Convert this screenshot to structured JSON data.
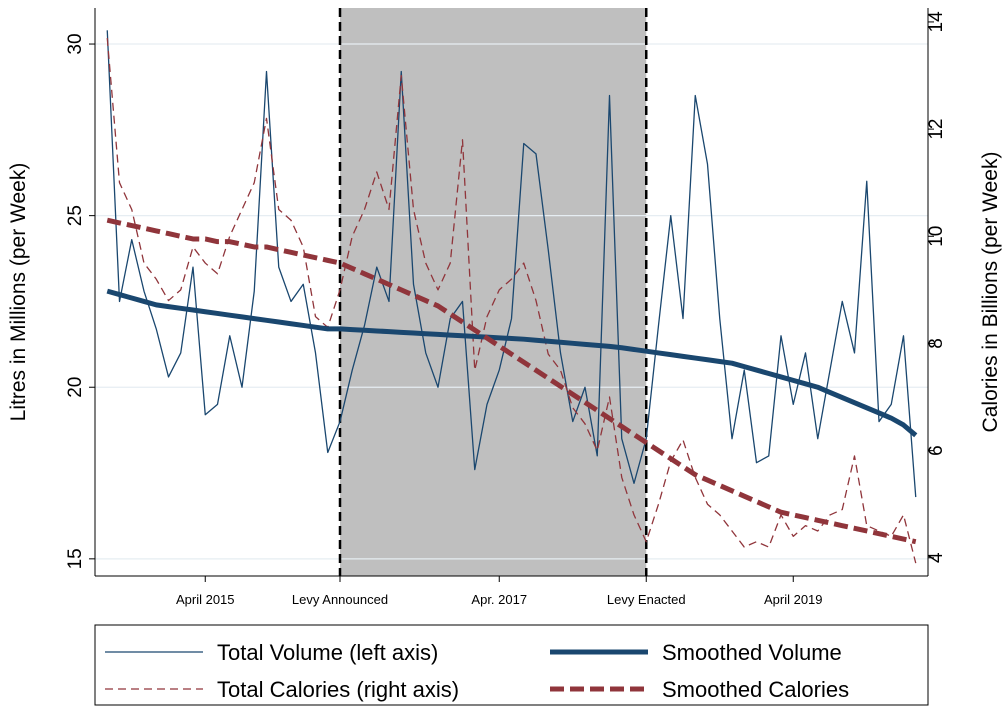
{
  "chart_data": {
    "type": "line",
    "y_label": "Litres in Millions (per Week)",
    "y2_label": "Calories in Billions (per Week)",
    "x": [
      "2014-08",
      "2014-09",
      "2014-10",
      "2014-11",
      "2014-12",
      "2015-01",
      "2015-02",
      "2015-03",
      "2015-04",
      "2015-05",
      "2015-06",
      "2015-07",
      "2015-08",
      "2015-09",
      "2015-10",
      "2015-11",
      "2015-12",
      "2016-01",
      "2016-02",
      "2016-03",
      "2016-04",
      "2016-05",
      "2016-06",
      "2016-07",
      "2016-08",
      "2016-09",
      "2016-10",
      "2016-11",
      "2016-12",
      "2017-01",
      "2017-02",
      "2017-03",
      "2017-04",
      "2017-05",
      "2017-06",
      "2017-07",
      "2017-08",
      "2017-09",
      "2017-10",
      "2017-11",
      "2017-12",
      "2018-01",
      "2018-02",
      "2018-03",
      "2018-04",
      "2018-05",
      "2018-06",
      "2018-07",
      "2018-08",
      "2018-09",
      "2018-10",
      "2018-11",
      "2018-12",
      "2019-01",
      "2019-02",
      "2019-03",
      "2019-04",
      "2019-05",
      "2019-06",
      "2019-07",
      "2019-08",
      "2019-09",
      "2019-10",
      "2019-11",
      "2019-12",
      "2020-01",
      "2020-02"
    ],
    "xlim": [
      "2014-07",
      "2020-03"
    ],
    "xticks": [
      {
        "value": "2015-04",
        "label": "April 2015"
      },
      {
        "value": "2016-03",
        "label": "Levy Announced"
      },
      {
        "value": "2017-04",
        "label": "Apr. 2017"
      },
      {
        "value": "2018-04",
        "label": "Levy Enacted"
      },
      {
        "value": "2019-04",
        "label": "April 2019"
      }
    ],
    "shaded_region": [
      "2016-03",
      "2018-04"
    ],
    "ylim": [
      14.5,
      31.05
    ],
    "yticks": [
      15,
      20,
      25,
      30
    ],
    "y2lim": [
      3.66,
      14.26
    ],
    "y2ticks": [
      4,
      6,
      8,
      10,
      12,
      14
    ],
    "grid": true,
    "series": [
      {
        "name": "Total Volume (left axis)",
        "color": "#1a476f",
        "style": "solid",
        "width": 1.3,
        "values": [
          30.4,
          22.5,
          24.3,
          22.8,
          21.7,
          20.3,
          21.0,
          23.5,
          19.2,
          19.5,
          21.5,
          20.0,
          22.8,
          29.2,
          23.5,
          22.5,
          23.0,
          21.0,
          18.1,
          19.0,
          20.5,
          21.8,
          23.5,
          22.5,
          29.2,
          23.0,
          21.0,
          20.0,
          22.0,
          22.5,
          17.6,
          19.5,
          20.5,
          22.0,
          27.1,
          26.8,
          24.0,
          21.0,
          19.0,
          20.0,
          18.0,
          28.5,
          18.5,
          17.2,
          18.5,
          21.8,
          25.0,
          22.0,
          28.5,
          26.5,
          22.0,
          18.5,
          20.5,
          17.8,
          18.0,
          21.5,
          19.5,
          21.0,
          18.5,
          20.5,
          22.5,
          21.0,
          26.0,
          19.0,
          19.5,
          21.5,
          16.8
        ]
      },
      {
        "name": "Total Calories (right axis)",
        "axis": "y2",
        "color": "#90353b",
        "style": "dashed",
        "width": 1.3,
        "values": [
          13.7,
          11.0,
          10.5,
          9.5,
          9.2,
          8.8,
          9.0,
          9.8,
          9.5,
          9.3,
          10.0,
          10.5,
          11.0,
          12.2,
          10.5,
          10.3,
          9.8,
          8.5,
          8.3,
          9.0,
          10.0,
          10.5,
          11.2,
          10.5,
          13.0,
          10.5,
          9.5,
          9.0,
          9.5,
          11.8,
          7.5,
          8.5,
          9.0,
          9.2,
          9.5,
          8.8,
          7.8,
          7.5,
          6.8,
          6.5,
          6.0,
          7.0,
          5.5,
          4.8,
          4.3,
          5.0,
          5.8,
          6.2,
          5.5,
          5.0,
          4.8,
          4.5,
          4.2,
          4.3,
          4.2,
          4.8,
          4.4,
          4.6,
          4.5,
          4.8,
          4.9,
          5.9,
          4.6,
          4.5,
          4.4,
          4.8,
          3.9
        ]
      },
      {
        "name": "Smoothed Volume",
        "color": "#1a476f",
        "style": "solid",
        "width": 5,
        "values": [
          22.8,
          22.7,
          22.6,
          22.5,
          22.4,
          22.35,
          22.3,
          22.25,
          22.2,
          22.15,
          22.1,
          22.05,
          22.0,
          21.95,
          21.9,
          21.85,
          21.8,
          21.75,
          21.7,
          21.7,
          21.68,
          21.66,
          21.64,
          21.62,
          21.6,
          21.58,
          21.56,
          21.54,
          21.52,
          21.5,
          21.48,
          21.46,
          21.44,
          21.42,
          21.4,
          21.37,
          21.34,
          21.31,
          21.28,
          21.25,
          21.22,
          21.19,
          21.15,
          21.1,
          21.05,
          21.0,
          20.95,
          20.9,
          20.85,
          20.8,
          20.75,
          20.7,
          20.6,
          20.5,
          20.4,
          20.3,
          20.2,
          20.1,
          20.0,
          19.85,
          19.7,
          19.55,
          19.4,
          19.25,
          19.1,
          18.9,
          18.6
        ]
      },
      {
        "name": "Smoothed Calories",
        "axis": "y2",
        "color": "#90353b",
        "style": "dashed",
        "width": 5,
        "values": [
          10.3,
          10.25,
          10.2,
          10.15,
          10.1,
          10.05,
          10.0,
          9.95,
          9.95,
          9.9,
          9.9,
          9.85,
          9.8,
          9.8,
          9.75,
          9.7,
          9.65,
          9.6,
          9.55,
          9.5,
          9.4,
          9.3,
          9.2,
          9.1,
          9.0,
          8.9,
          8.8,
          8.7,
          8.55,
          8.4,
          8.25,
          8.1,
          7.95,
          7.8,
          7.65,
          7.5,
          7.35,
          7.2,
          7.05,
          6.9,
          6.75,
          6.6,
          6.45,
          6.3,
          6.15,
          6.0,
          5.85,
          5.7,
          5.55,
          5.45,
          5.35,
          5.25,
          5.15,
          5.05,
          4.95,
          4.85,
          4.8,
          4.75,
          4.7,
          4.65,
          4.6,
          4.55,
          4.5,
          4.45,
          4.4,
          4.35,
          4.3
        ]
      }
    ]
  }
}
